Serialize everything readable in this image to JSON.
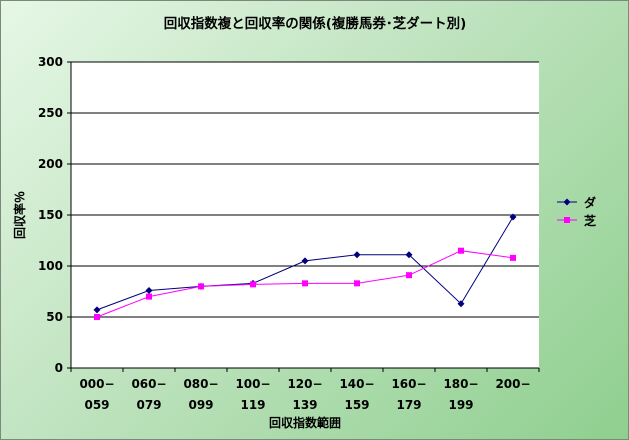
{
  "chart_data": {
    "type": "line",
    "title": "回収指数複と回収率の関係(複勝馬券･芝ダート別)",
    "xlabel": "回収指数範囲",
    "ylabel": "回収率％",
    "categories": [
      [
        "000−",
        "059"
      ],
      [
        "060−",
        "079"
      ],
      [
        "080−",
        "099"
      ],
      [
        "100−",
        "119"
      ],
      [
        "120−",
        "139"
      ],
      [
        "140−",
        "159"
      ],
      [
        "160−",
        "179"
      ],
      [
        "180−",
        "199"
      ],
      [
        "200−",
        ""
      ]
    ],
    "ylim": [
      0,
      300
    ],
    "yticks": [
      0,
      50,
      100,
      150,
      200,
      250,
      300
    ],
    "grid": true,
    "legend": "right",
    "series": [
      {
        "name": "ダ",
        "color": "#00007f",
        "marker": "diamond",
        "values": [
          57,
          76,
          80,
          83,
          105,
          111,
          111,
          63,
          148
        ]
      },
      {
        "name": "芝",
        "color": "#ff00ff",
        "marker": "square",
        "values": [
          50,
          70,
          80,
          82,
          83,
          83,
          91,
          115,
          108
        ]
      }
    ]
  },
  "colors": {
    "plot_background": "#ffffff",
    "gridline": "#000000"
  }
}
